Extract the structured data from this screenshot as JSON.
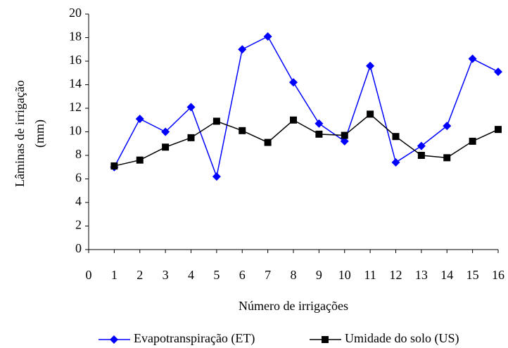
{
  "chart_data": {
    "type": "line",
    "x_label": "Número de irrigações",
    "y_label": [
      "Lâminas de irrigação",
      "(mm)"
    ],
    "x": [
      1,
      2,
      3,
      4,
      5,
      6,
      7,
      8,
      9,
      10,
      11,
      12,
      13,
      14,
      15,
      16
    ],
    "series": [
      {
        "name": "Evapotranspiração (ET)",
        "color": "#0000ff",
        "marker": "diamond",
        "values": [
          7.0,
          11.1,
          10.0,
          12.1,
          6.2,
          17.0,
          18.1,
          14.2,
          10.7,
          9.2,
          15.6,
          7.4,
          8.8,
          10.5,
          16.2,
          15.1
        ]
      },
      {
        "name": "Umidade do solo (US)",
        "color": "#000000",
        "marker": "square",
        "values": [
          7.1,
          7.6,
          8.7,
          9.5,
          10.9,
          10.1,
          9.1,
          11.0,
          9.8,
          9.7,
          11.5,
          9.6,
          8.0,
          7.8,
          9.2,
          10.2
        ]
      }
    ],
    "xlim": [
      0,
      16
    ],
    "xticks": [
      0,
      1,
      2,
      3,
      4,
      5,
      6,
      7,
      8,
      9,
      10,
      11,
      12,
      13,
      14,
      15,
      16
    ],
    "ylim": [
      0,
      20
    ],
    "yticks": [
      0,
      2,
      4,
      6,
      8,
      10,
      12,
      14,
      16,
      18,
      20
    ],
    "grid": false,
    "legend": "bottom"
  }
}
